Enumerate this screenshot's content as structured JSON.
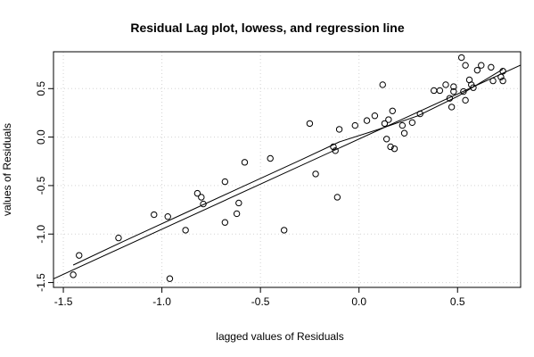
{
  "chart_data": {
    "type": "scatter",
    "title": "Residual Lag plot, lowess, and regression line",
    "xlabel": "lagged values of Residuals",
    "ylabel": "values of Residuals",
    "xlim": [
      -1.55,
      0.82
    ],
    "ylim": [
      -1.55,
      0.88
    ],
    "x_ticks": [
      -1.5,
      -1.0,
      -0.5,
      0.0,
      0.5
    ],
    "x_tick_labels": [
      "-1.5",
      "-1.0",
      "-0.5",
      "0.0",
      "0.5"
    ],
    "y_ticks": [
      -1.5,
      -1.0,
      -0.5,
      0.0,
      0.5
    ],
    "y_tick_labels": [
      "-1.5",
      "-1.0",
      "-0.5",
      "0.0",
      "0.5"
    ],
    "grid": true,
    "marker": "open-circle",
    "points": [
      [
        -1.45,
        -1.42
      ],
      [
        -1.42,
        -1.22
      ],
      [
        -1.22,
        -1.04
      ],
      [
        -1.04,
        -0.8
      ],
      [
        -0.97,
        -0.82
      ],
      [
        -0.96,
        -1.46
      ],
      [
        -0.88,
        -0.96
      ],
      [
        -0.82,
        -0.58
      ],
      [
        -0.8,
        -0.62
      ],
      [
        -0.79,
        -0.69
      ],
      [
        -0.68,
        -0.46
      ],
      [
        -0.68,
        -0.88
      ],
      [
        -0.62,
        -0.79
      ],
      [
        -0.61,
        -0.68
      ],
      [
        -0.58,
        -0.26
      ],
      [
        -0.45,
        -0.22
      ],
      [
        -0.38,
        -0.96
      ],
      [
        -0.25,
        0.14
      ],
      [
        -0.22,
        -0.38
      ],
      [
        -0.13,
        -0.1
      ],
      [
        -0.12,
        -0.14
      ],
      [
        -0.11,
        -0.62
      ],
      [
        -0.1,
        0.08
      ],
      [
        -0.02,
        0.12
      ],
      [
        0.04,
        0.17
      ],
      [
        0.08,
        0.22
      ],
      [
        0.12,
        0.54
      ],
      [
        0.13,
        0.14
      ],
      [
        0.14,
        -0.02
      ],
      [
        0.15,
        0.18
      ],
      [
        0.16,
        -0.1
      ],
      [
        0.17,
        0.27
      ],
      [
        0.18,
        -0.12
      ],
      [
        0.22,
        0.12
      ],
      [
        0.23,
        0.04
      ],
      [
        0.27,
        0.15
      ],
      [
        0.31,
        0.24
      ],
      [
        0.38,
        0.48
      ],
      [
        0.41,
        0.48
      ],
      [
        0.44,
        0.54
      ],
      [
        0.46,
        0.4
      ],
      [
        0.47,
        0.31
      ],
      [
        0.48,
        0.47
      ],
      [
        0.48,
        0.52
      ],
      [
        0.52,
        0.82
      ],
      [
        0.53,
        0.47
      ],
      [
        0.54,
        0.74
      ],
      [
        0.54,
        0.38
      ],
      [
        0.56,
        0.59
      ],
      [
        0.57,
        0.54
      ],
      [
        0.58,
        0.51
      ],
      [
        0.6,
        0.69
      ],
      [
        0.62,
        0.74
      ],
      [
        0.67,
        0.72
      ],
      [
        0.68,
        0.58
      ],
      [
        0.72,
        0.62
      ],
      [
        0.73,
        0.68
      ],
      [
        0.73,
        0.58
      ]
    ],
    "regression_line": {
      "intercept": -0.02,
      "slope": 0.93
    },
    "lowess_line": [
      [
        -1.45,
        -1.32
      ],
      [
        -1.2,
        -1.08
      ],
      [
        -0.9,
        -0.8
      ],
      [
        -0.6,
        -0.52
      ],
      [
        -0.3,
        -0.24
      ],
      [
        -0.1,
        -0.05
      ],
      [
        0.1,
        0.08
      ],
      [
        0.3,
        0.22
      ],
      [
        0.5,
        0.42
      ],
      [
        0.73,
        0.7
      ]
    ]
  }
}
